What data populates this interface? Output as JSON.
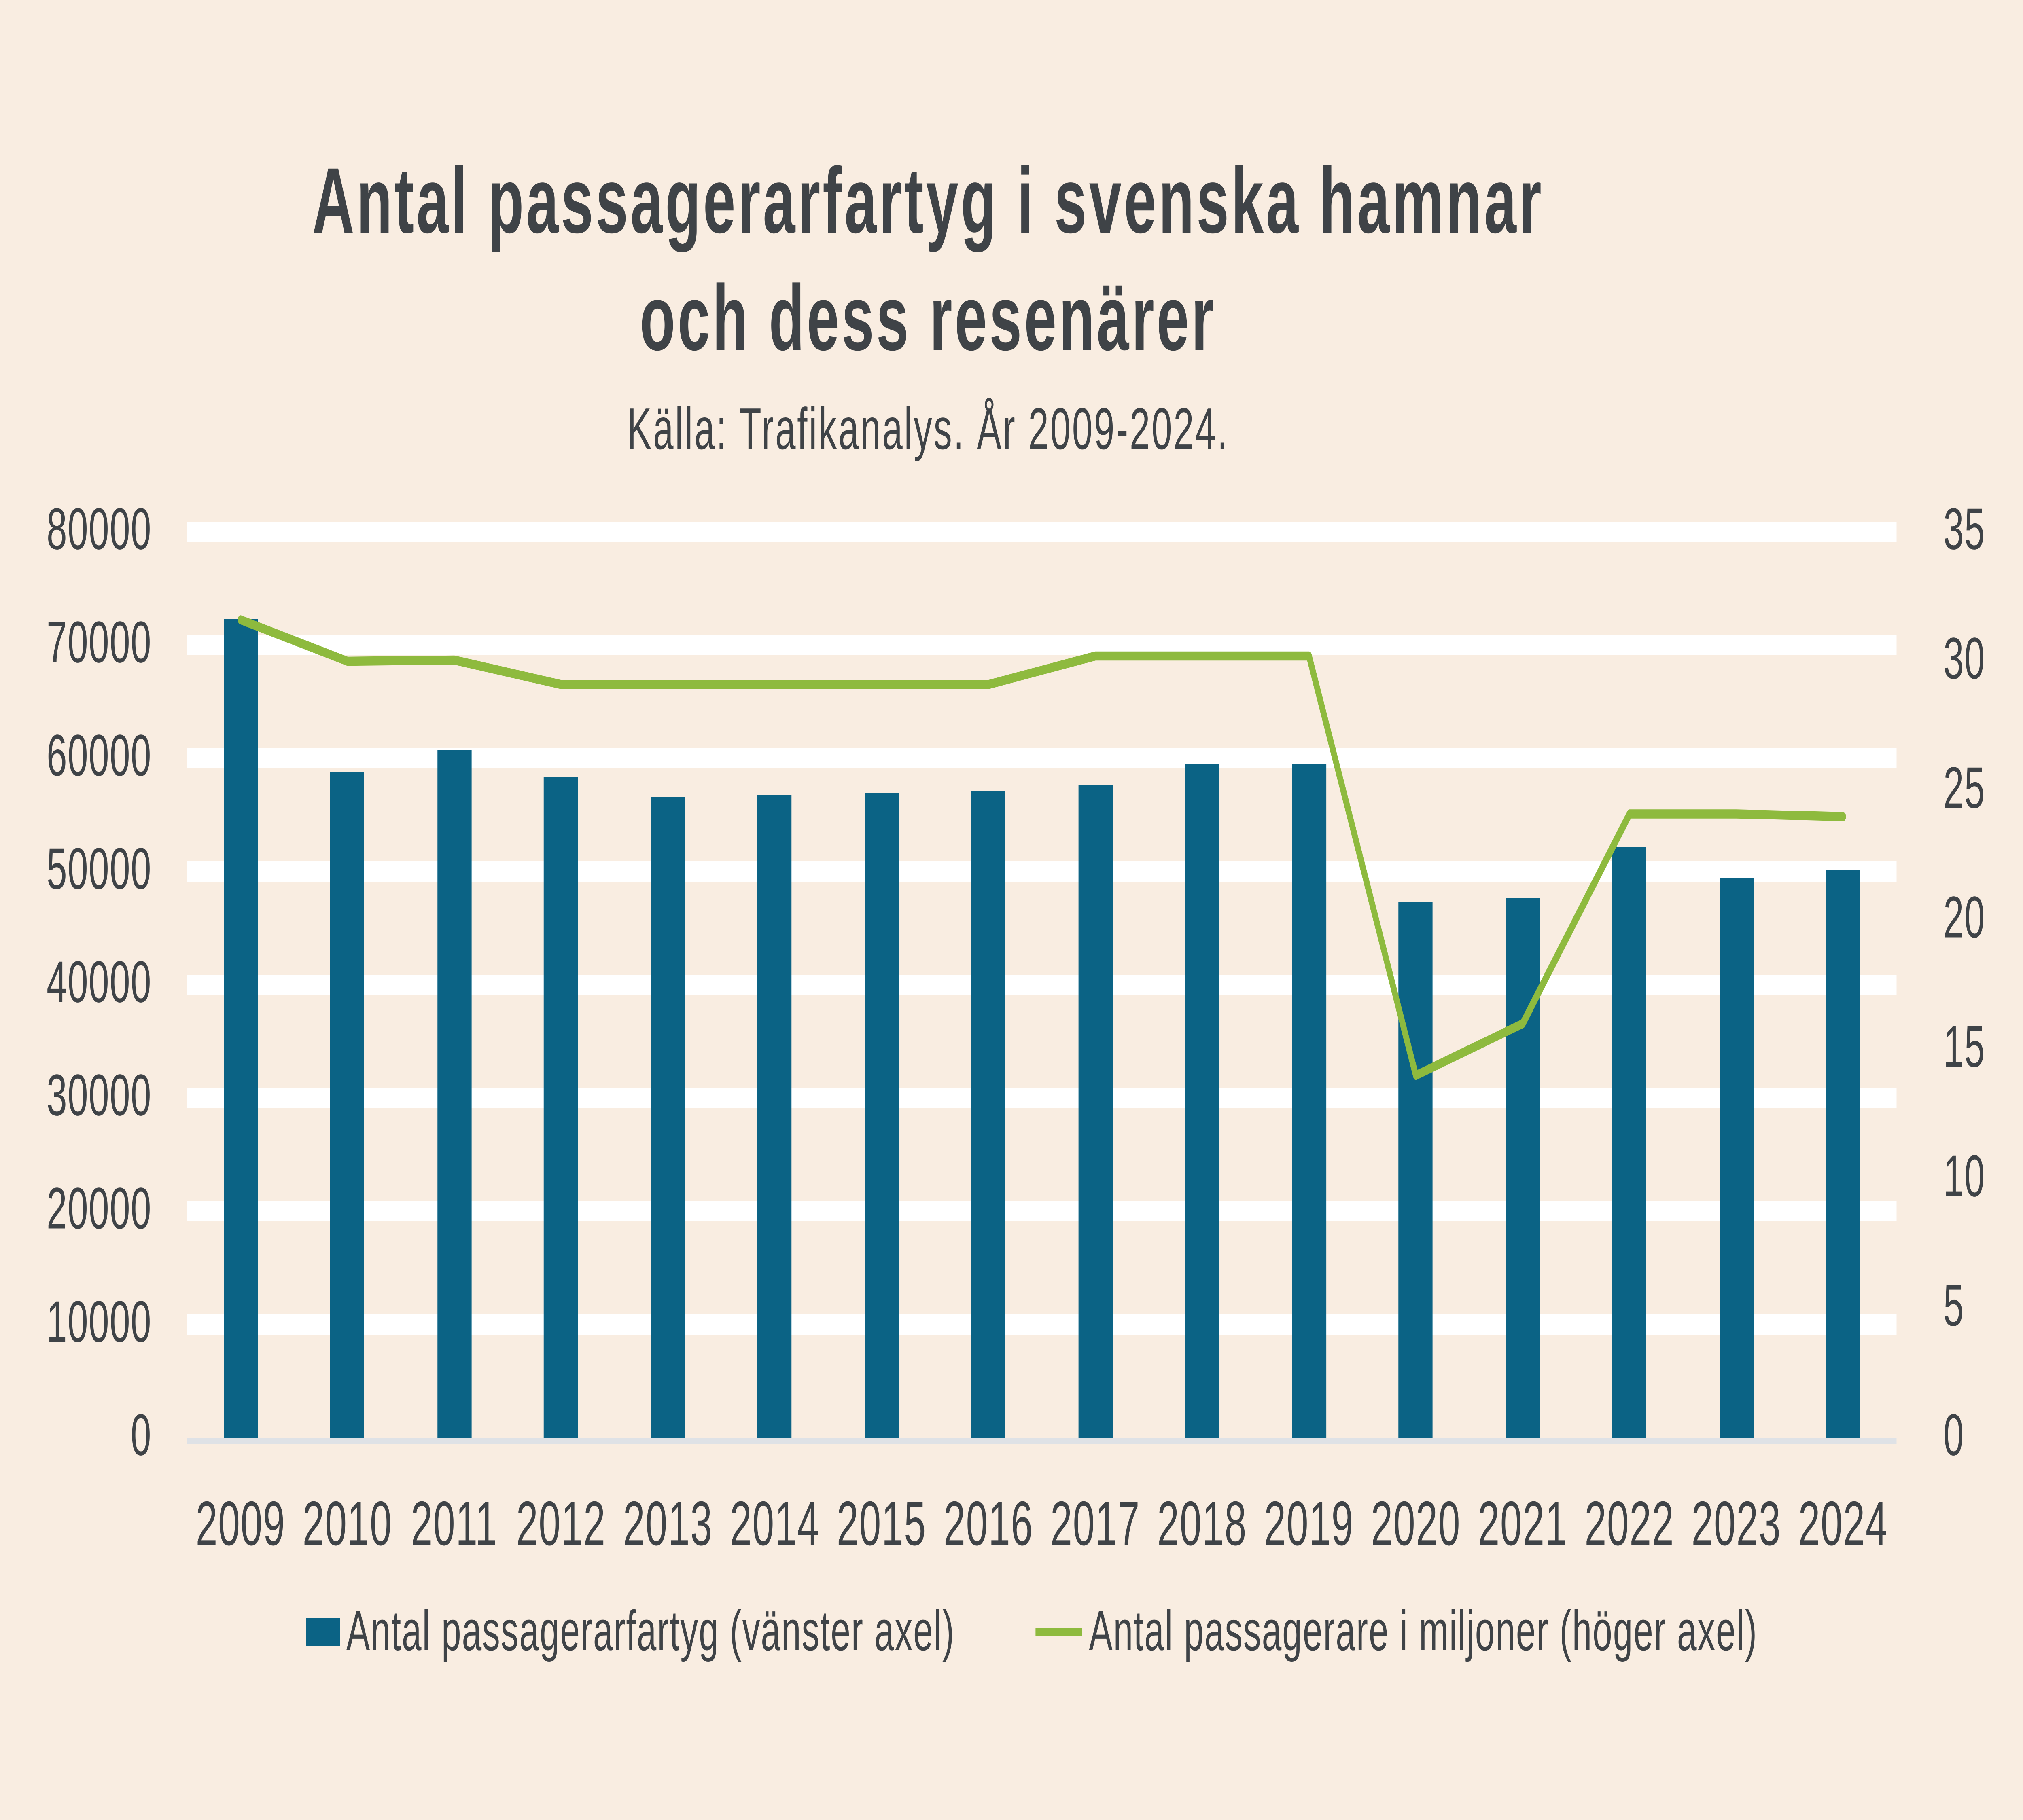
{
  "colors": {
    "bg": "#f9ede1",
    "bar": "#0b6385",
    "line": "#8eba3e",
    "text": "#3f4347",
    "grid": "#ffffff",
    "axisline": "#dfe2e6"
  },
  "chart_data": {
    "type": "bar+line",
    "title": "Antal passagerarfartyg i svenska hamnar och dess resenärer",
    "title_lines": [
      "Antal passagerarfartyg i svenska hamnar",
      "och dess resenärer"
    ],
    "subtitle": "Källa: Trafikanalys. År 2009-2024.",
    "categories": [
      "2009",
      "2010",
      "2011",
      "2012",
      "2013",
      "2014",
      "2015",
      "2016",
      "2017",
      "2018",
      "2019",
      "2020",
      "2021",
      "2022",
      "2023",
      "2024"
    ],
    "series": [
      {
        "name": "Antal passagerarfartyg (vänster axel)",
        "type": "bar",
        "axis": "left",
        "values": [
          72300,
          58800,
          60800,
          58400,
          56600,
          56800,
          57000,
          57100,
          57700,
          59400,
          59500,
          47400,
          47600,
          52200,
          49400,
          50100
        ]
      },
      {
        "name": "Antal passagerare i miljoner (höger axel)",
        "type": "line",
        "axis": "right",
        "values": [
          31.6,
          30.0,
          30.05,
          29.1,
          29.1,
          29.1,
          29.1,
          29.1,
          30.2,
          30.2,
          30.2,
          14.0,
          16.0,
          24.1,
          24.1,
          24.0
        ]
      }
    ],
    "left_axis": {
      "min": 0,
      "max": 80000,
      "step": 10000,
      "labels": [
        "80000",
        "70000",
        "60000",
        "50000",
        "40000",
        "30000",
        "20000",
        "10000",
        "0"
      ]
    },
    "right_axis": {
      "min": 0,
      "max": 35,
      "step": 5,
      "labels": [
        "35",
        "30",
        "25",
        "20",
        "15",
        "10",
        "5",
        "0"
      ]
    },
    "grid": {
      "color": "#ffffff",
      "orientation": "horizontal"
    },
    "legend_position": "bottom"
  }
}
